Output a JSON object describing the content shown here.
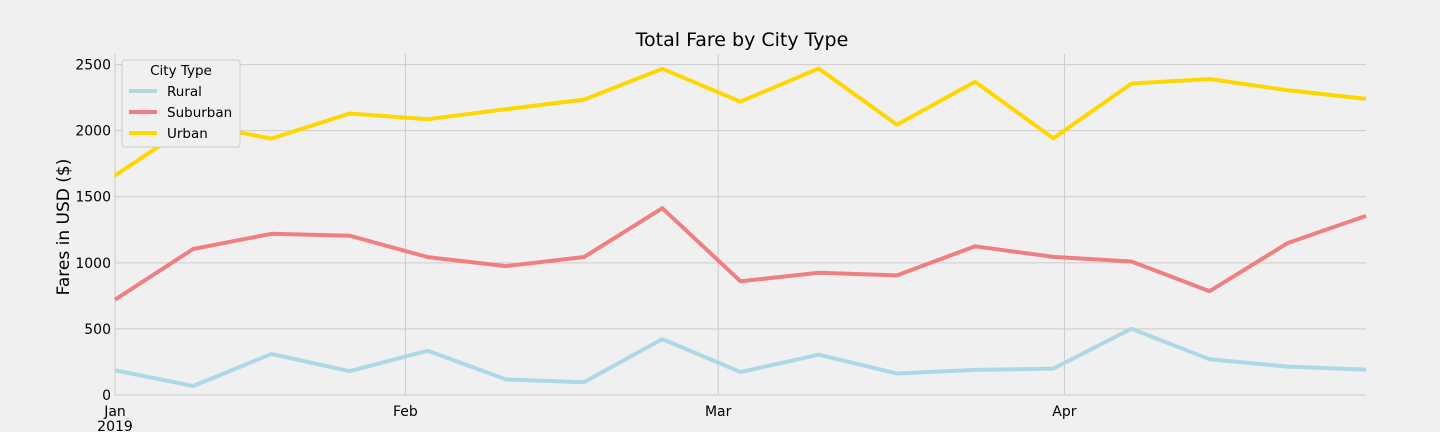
{
  "chart_data": {
    "type": "line",
    "title": "Total Fare by City Type",
    "xlabel": "",
    "ylabel": "Fares in USD ($)",
    "x": [
      "2019-01-06",
      "2019-01-13",
      "2019-01-20",
      "2019-01-27",
      "2019-02-03",
      "2019-02-10",
      "2019-02-17",
      "2019-02-24",
      "2019-03-03",
      "2019-03-10",
      "2019-03-17",
      "2019-03-24",
      "2019-03-31",
      "2019-04-07",
      "2019-04-14",
      "2019-04-21",
      "2019-04-28"
    ],
    "xlim": [
      "2019-01-06",
      "2019-04-28"
    ],
    "ylim": [
      0,
      2580
    ],
    "yticks": [
      0,
      500,
      1000,
      1500,
      2000,
      2500
    ],
    "xticks": [
      {
        "date": "2019-01-06",
        "label": "Jan",
        "sublabel": "2019"
      },
      {
        "date": "2019-02-01",
        "label": "Feb",
        "sublabel": ""
      },
      {
        "date": "2019-03-01",
        "label": "Mar",
        "sublabel": ""
      },
      {
        "date": "2019-04-01",
        "label": "Apr",
        "sublabel": ""
      }
    ],
    "series": [
      {
        "name": "Rural",
        "color": "#add8e6",
        "values": [
          187,
          68,
          310,
          180,
          335,
          118,
          97,
          423,
          174,
          305,
          163,
          190,
          200,
          502,
          270,
          215,
          192
        ]
      },
      {
        "name": "Suburban",
        "color": "#f08080",
        "values": [
          721,
          1105,
          1220,
          1205,
          1043,
          975,
          1044,
          1413,
          860,
          925,
          905,
          1125,
          1045,
          1010,
          785,
          1150,
          1355
        ]
      },
      {
        "name": "Urban",
        "color": "#ffd700",
        "values": [
          1661,
          2052,
          1940,
          2130,
          2087,
          2162,
          2235,
          2468,
          2220,
          2470,
          2045,
          2370,
          1942,
          2356,
          2391,
          2305,
          2240
        ]
      }
    ],
    "legend": {
      "title": "City Type",
      "position": "top-left"
    },
    "grid": true
  }
}
